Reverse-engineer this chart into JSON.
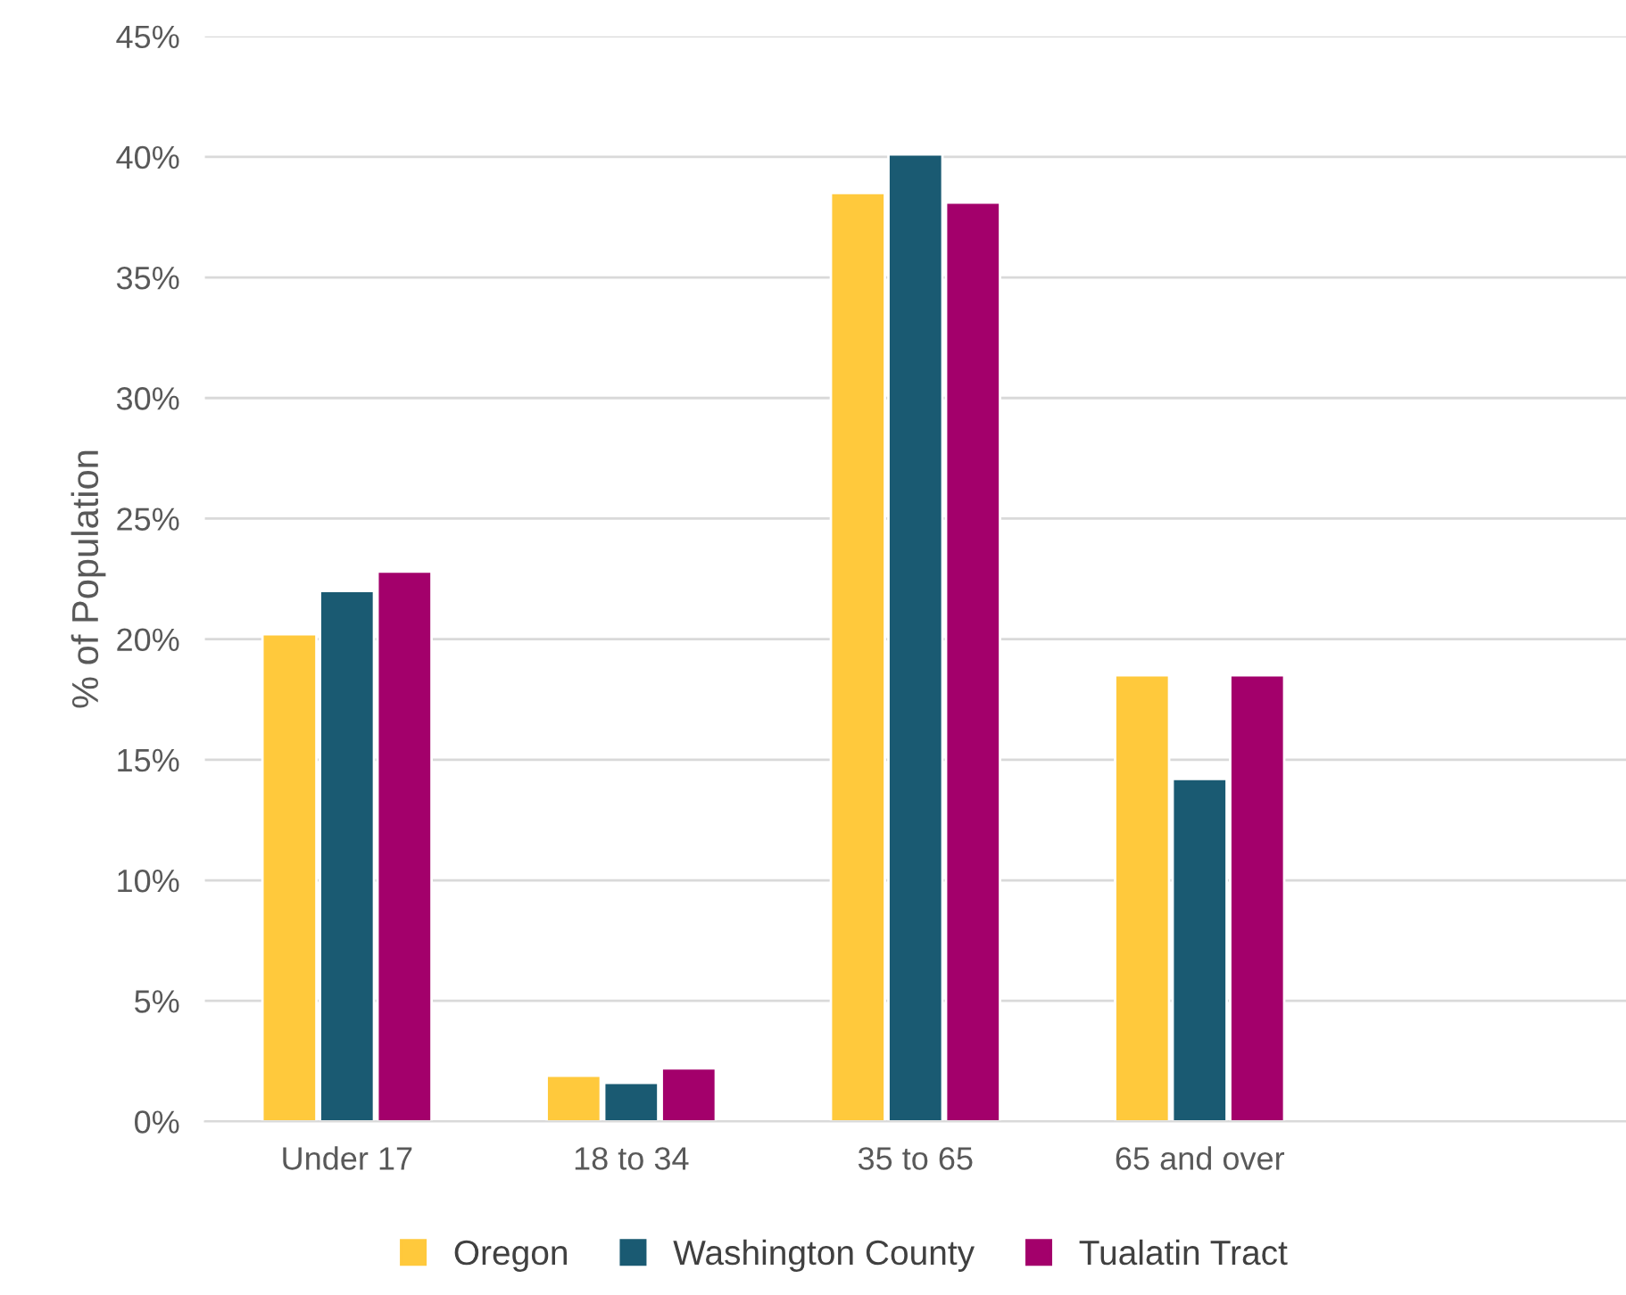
{
  "chart_data": {
    "type": "bar",
    "ylabel": "% of Population",
    "categories": [
      "Under 17",
      "18 to 34",
      "35 to 65",
      "65 and over",
      null
    ],
    "series": [
      {
        "name": "Oregon",
        "color": "#ffc93c",
        "values": [
          20.2,
          1.9,
          38.5,
          18.5,
          null
        ]
      },
      {
        "name": "Washington County",
        "color": "#1a5a72",
        "values": [
          22.0,
          1.6,
          40.1,
          14.2,
          null
        ]
      },
      {
        "name": "Tualatin Tract",
        "color": "#a3006b",
        "values": [
          22.8,
          2.2,
          38.1,
          18.5,
          null
        ]
      }
    ],
    "ylim": [
      0,
      45
    ],
    "yticks": [
      {
        "value": 0,
        "label": "0%"
      },
      {
        "value": 5,
        "label": "5%"
      },
      {
        "value": 10,
        "label": "10%"
      },
      {
        "value": 15,
        "label": "15%"
      },
      {
        "value": 20,
        "label": "20%"
      },
      {
        "value": 25,
        "label": "25%"
      },
      {
        "value": 30,
        "label": "30%"
      },
      {
        "value": 35,
        "label": "35%"
      },
      {
        "value": 40,
        "label": "40%"
      },
      {
        "value": 45,
        "label": "45%"
      }
    ],
    "grid": "y",
    "legend": "bottom"
  }
}
